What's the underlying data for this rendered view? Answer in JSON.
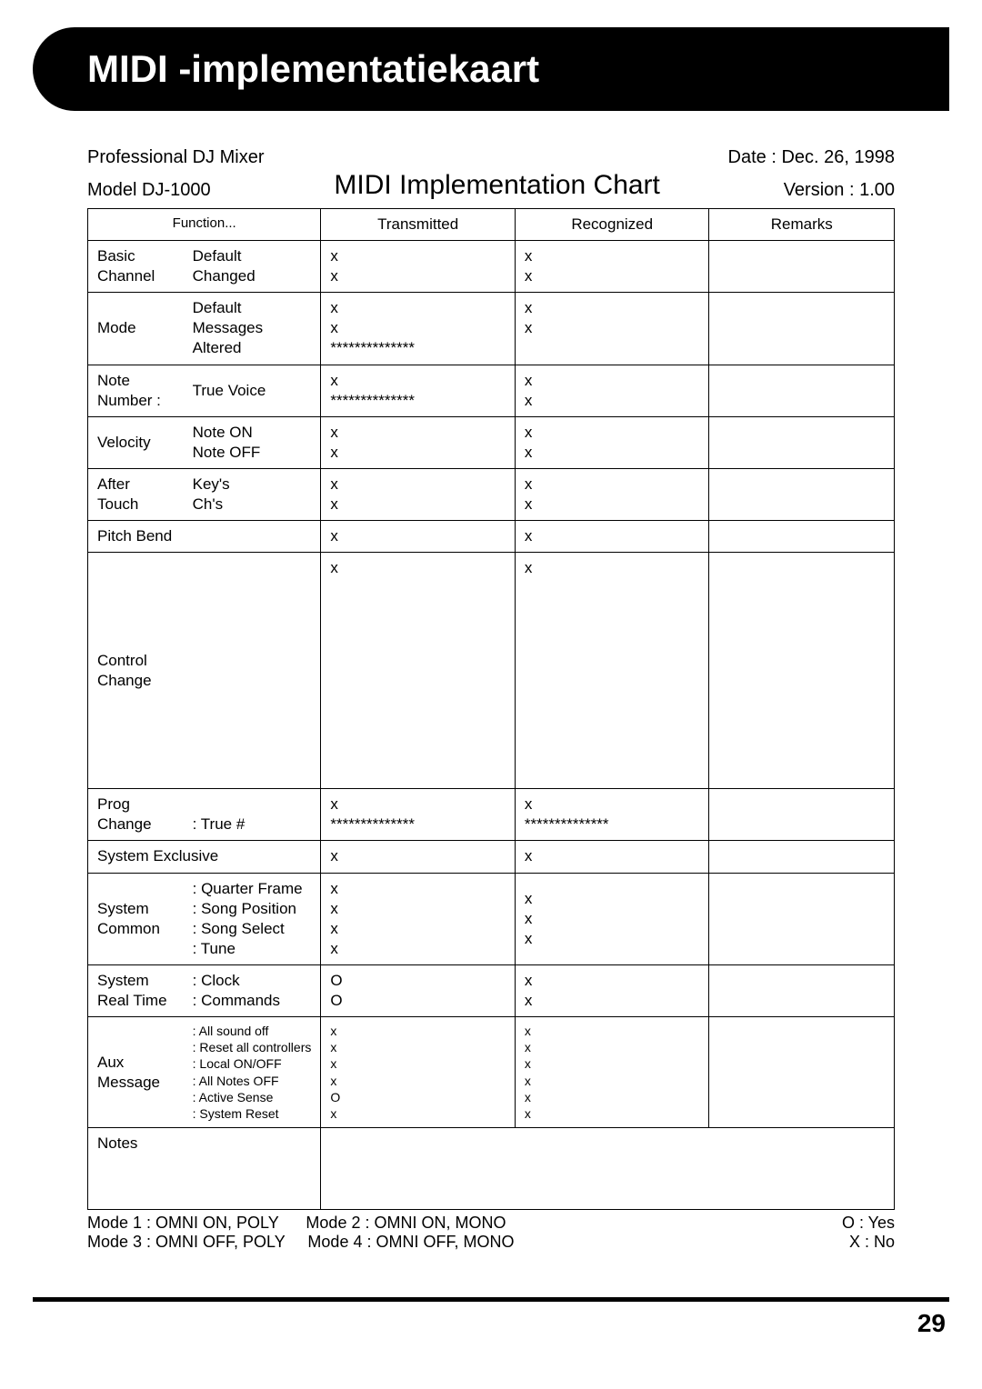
{
  "header": {
    "title": "MIDI -implementatiekaart"
  },
  "meta": {
    "product": "Professional DJ Mixer",
    "model": "Model DJ-1000",
    "date": "Date : Dec. 26, 1998",
    "version": "Version : 1.00",
    "chart_title": "MIDI Implementation Chart"
  },
  "columns": {
    "function": "Function...",
    "transmitted": "Transmitted",
    "recognized": "Recognized",
    "remarks": "Remarks"
  },
  "rows": {
    "basic_channel": {
      "cat": "Basic\nChannel",
      "sub": "Default\nChanged",
      "tx": "x\nx",
      "rx": "x\nx",
      "rem": ""
    },
    "mode": {
      "cat": "Mode",
      "sub": "Default\nMessages\nAltered",
      "tx": "x\nx\n**************",
      "rx": "x\nx",
      "rem": ""
    },
    "note_number": {
      "cat": "Note\nNumber :",
      "sub": "True Voice",
      "tx": "x\n**************",
      "rx": "x\nx",
      "rem": ""
    },
    "velocity": {
      "cat": "Velocity",
      "sub": "Note ON\nNote OFF",
      "tx": "x\nx",
      "rx": "x\nx",
      "rem": ""
    },
    "after_touch": {
      "cat": "After\nTouch",
      "sub": "Key's\nCh's",
      "tx": "x\nx",
      "rx": "x\nx",
      "rem": ""
    },
    "pitch_bend": {
      "cat": "Pitch Bend",
      "sub": "",
      "tx": "x",
      "rx": "x",
      "rem": ""
    },
    "control_change": {
      "cat": "Control\nChange",
      "sub": "",
      "tx": "x",
      "rx": "x",
      "rem": ""
    },
    "prog_change": {
      "cat": "Prog\nChange",
      "sub": ": True #",
      "tx": "x\n**************",
      "rx": "x\n**************",
      "rem": ""
    },
    "system_exclusive": {
      "cat": "System Exclusive",
      "sub": "",
      "tx": "x",
      "rx": "x",
      "rem": ""
    },
    "system_common": {
      "cat": "System\nCommon",
      "sub": ": Quarter Frame\n: Song Position\n: Song Select\n: Tune",
      "tx": "x\nx\nx\nx",
      "rx": "x\nx\nx",
      "rem": ""
    },
    "system_realtime": {
      "cat": "System\nReal Time",
      "sub": ": Clock\n: Commands",
      "tx": "O\nO",
      "rx": "x\nx",
      "rem": ""
    },
    "aux_message": {
      "cat": "Aux\nMessage",
      "sub": ": All sound off\n: Reset all controllers\n: Local ON/OFF\n: All Notes OFF\n: Active Sense\n: System Reset",
      "tx": "x\nx\nx\nx\nO\nx",
      "rx": "x\nx\nx\nx\nx\nx",
      "rem": ""
    },
    "notes": {
      "cat": "Notes",
      "sub": "",
      "tx": "",
      "rx": "",
      "rem": ""
    }
  },
  "legend": {
    "mode1": "Mode 1 : OMNI ON, POLY",
    "mode2": "Mode 2 : OMNI ON, MONO",
    "mode3": "Mode 3 : OMNI OFF, POLY",
    "mode4": "Mode 4 : OMNI OFF, MONO",
    "yes": "O : Yes",
    "no": "X : No"
  },
  "page_number": "29"
}
